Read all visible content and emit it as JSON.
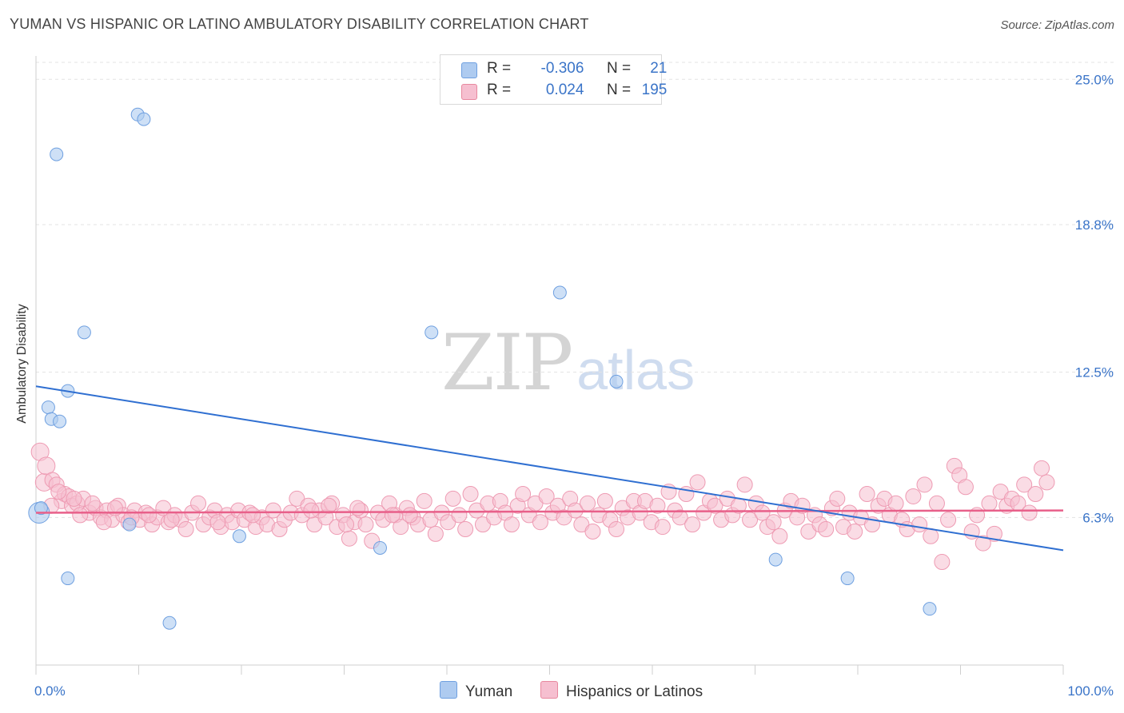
{
  "header": {
    "title": "YUMAN VS HISPANIC OR LATINO AMBULATORY DISABILITY CORRELATION CHART",
    "source": "Source: ZipAtlas.com"
  },
  "watermark": {
    "zip": "ZIP",
    "atlas": "atlas"
  },
  "legend_top": {
    "rows": [
      {
        "r_label": "R =",
        "r_value": "-0.306",
        "n_label": "N =",
        "n_value": "21",
        "color": "#aecbf0"
      },
      {
        "r_label": "R =",
        "r_value": "0.024",
        "n_label": "N =",
        "n_value": "195",
        "color": "#f6bfd0"
      }
    ]
  },
  "legend_bottom": {
    "items": [
      {
        "label": "Yuman",
        "color": "#aecbf0"
      },
      {
        "label": "Hispanics or Latinos",
        "color": "#f6bfd0"
      }
    ]
  },
  "chart_data": {
    "type": "scatter",
    "title": "YUMAN VS HISPANIC OR LATINO AMBULATORY DISABILITY CORRELATION CHART",
    "xlabel": "",
    "ylabel": "Ambulatory Disability",
    "xlim": [
      0,
      100
    ],
    "ylim": [
      0,
      26
    ],
    "x_tick_labels": [
      "0.0%",
      "100.0%"
    ],
    "y_ticks": [
      6.3,
      12.5,
      18.8,
      25.0
    ],
    "y_tick_labels": [
      "6.3%",
      "12.5%",
      "18.8%",
      "25.0%"
    ],
    "grid": true,
    "legend_position": "top-center",
    "series": [
      {
        "name": "Yuman",
        "color": "#6fa0e0",
        "fill": "#aecbf0",
        "points": [
          [
            0.3,
            6.5
          ],
          [
            0.5,
            6.7
          ],
          [
            1.2,
            11.0
          ],
          [
            1.5,
            10.5
          ],
          [
            2.0,
            21.8
          ],
          [
            2.3,
            10.4
          ],
          [
            3.1,
            11.7
          ],
          [
            3.1,
            3.7
          ],
          [
            4.7,
            14.2
          ],
          [
            9.1,
            6.0
          ],
          [
            9.9,
            23.5
          ],
          [
            10.5,
            23.3
          ],
          [
            13.0,
            1.8
          ],
          [
            19.8,
            5.5
          ],
          [
            33.5,
            5.0
          ],
          [
            38.5,
            14.2
          ],
          [
            51.0,
            15.9
          ],
          [
            56.5,
            12.1
          ],
          [
            72.0,
            4.5
          ],
          [
            79.0,
            3.7
          ],
          [
            87.0,
            2.4
          ]
        ],
        "trend": [
          [
            0,
            11.9
          ],
          [
            100,
            4.9
          ]
        ]
      },
      {
        "name": "Hispanics or Latinos",
        "color": "#e8608a",
        "fill": "#f6bfd0",
        "points": [
          [
            0.4,
            9.1
          ],
          [
            0.8,
            7.8
          ],
          [
            1.0,
            8.5
          ],
          [
            1.6,
            7.9
          ],
          [
            2.0,
            7.7
          ],
          [
            2.5,
            7.0
          ],
          [
            2.8,
            7.3
          ],
          [
            3.2,
            7.2
          ],
          [
            3.5,
            6.8
          ],
          [
            4.0,
            6.9
          ],
          [
            4.6,
            7.1
          ],
          [
            5.2,
            6.5
          ],
          [
            5.8,
            6.7
          ],
          [
            6.3,
            6.3
          ],
          [
            6.9,
            6.6
          ],
          [
            7.4,
            6.2
          ],
          [
            8.0,
            6.8
          ],
          [
            8.5,
            6.4
          ],
          [
            9.0,
            6.1
          ],
          [
            9.6,
            6.6
          ],
          [
            10.1,
            6.2
          ],
          [
            10.7,
            6.5
          ],
          [
            11.3,
            6.0
          ],
          [
            11.8,
            6.3
          ],
          [
            12.4,
            6.7
          ],
          [
            12.9,
            6.1
          ],
          [
            13.5,
            6.4
          ],
          [
            14.1,
            6.2
          ],
          [
            14.6,
            5.8
          ],
          [
            15.2,
            6.5
          ],
          [
            15.8,
            6.9
          ],
          [
            16.3,
            6.0
          ],
          [
            16.9,
            6.3
          ],
          [
            17.4,
            6.6
          ],
          [
            18.0,
            5.9
          ],
          [
            18.6,
            6.4
          ],
          [
            19.1,
            6.1
          ],
          [
            19.7,
            6.6
          ],
          [
            20.3,
            6.2
          ],
          [
            20.8,
            6.5
          ],
          [
            21.4,
            5.9
          ],
          [
            22.0,
            6.3
          ],
          [
            22.5,
            6.0
          ],
          [
            23.1,
            6.6
          ],
          [
            23.7,
            5.8
          ],
          [
            24.2,
            6.2
          ],
          [
            24.8,
            6.5
          ],
          [
            25.4,
            7.1
          ],
          [
            25.9,
            6.4
          ],
          [
            26.5,
            6.8
          ],
          [
            27.1,
            6.0
          ],
          [
            27.6,
            6.6
          ],
          [
            28.2,
            6.3
          ],
          [
            28.8,
            6.9
          ],
          [
            29.3,
            5.9
          ],
          [
            29.9,
            6.4
          ],
          [
            30.5,
            5.4
          ],
          [
            31.0,
            6.1
          ],
          [
            31.6,
            6.6
          ],
          [
            32.1,
            6.0
          ],
          [
            32.7,
            5.3
          ],
          [
            33.3,
            6.5
          ],
          [
            33.8,
            6.2
          ],
          [
            34.4,
            6.9
          ],
          [
            35.0,
            6.4
          ],
          [
            35.5,
            5.9
          ],
          [
            36.1,
            6.7
          ],
          [
            36.7,
            6.3
          ],
          [
            37.2,
            6.0
          ],
          [
            37.8,
            7.0
          ],
          [
            38.4,
            6.2
          ],
          [
            38.9,
            5.6
          ],
          [
            39.5,
            6.5
          ],
          [
            40.1,
            6.1
          ],
          [
            40.6,
            7.1
          ],
          [
            41.2,
            6.4
          ],
          [
            41.8,
            5.8
          ],
          [
            42.3,
            7.3
          ],
          [
            42.9,
            6.6
          ],
          [
            43.5,
            6.0
          ],
          [
            44.0,
            6.9
          ],
          [
            44.6,
            6.3
          ],
          [
            45.2,
            7.0
          ],
          [
            45.7,
            6.5
          ],
          [
            46.3,
            6.0
          ],
          [
            46.9,
            6.8
          ],
          [
            47.4,
            7.3
          ],
          [
            48.0,
            6.4
          ],
          [
            48.6,
            6.9
          ],
          [
            49.1,
            6.1
          ],
          [
            49.7,
            7.2
          ],
          [
            50.3,
            6.5
          ],
          [
            50.8,
            6.8
          ],
          [
            51.4,
            6.3
          ],
          [
            52.0,
            7.1
          ],
          [
            52.5,
            6.6
          ],
          [
            53.1,
            6.0
          ],
          [
            53.7,
            6.9
          ],
          [
            54.2,
            5.7
          ],
          [
            54.8,
            6.4
          ],
          [
            55.4,
            7.0
          ],
          [
            55.9,
            6.2
          ],
          [
            56.5,
            5.8
          ],
          [
            57.1,
            6.7
          ],
          [
            57.6,
            6.3
          ],
          [
            58.2,
            7.0
          ],
          [
            58.8,
            6.5
          ],
          [
            59.3,
            7.0
          ],
          [
            59.9,
            6.1
          ],
          [
            60.5,
            6.8
          ],
          [
            61.0,
            5.9
          ],
          [
            61.6,
            7.4
          ],
          [
            62.2,
            6.6
          ],
          [
            62.7,
            6.3
          ],
          [
            63.3,
            7.3
          ],
          [
            63.9,
            6.0
          ],
          [
            64.4,
            7.8
          ],
          [
            65.0,
            6.5
          ],
          [
            65.6,
            7.0
          ],
          [
            66.1,
            6.8
          ],
          [
            66.7,
            6.2
          ],
          [
            67.3,
            7.1
          ],
          [
            67.8,
            6.4
          ],
          [
            68.4,
            6.8
          ],
          [
            69.0,
            7.7
          ],
          [
            69.5,
            6.2
          ],
          [
            70.1,
            6.9
          ],
          [
            70.7,
            6.5
          ],
          [
            71.2,
            5.9
          ],
          [
            71.8,
            6.1
          ],
          [
            72.4,
            5.5
          ],
          [
            72.9,
            6.6
          ],
          [
            73.5,
            7.0
          ],
          [
            74.1,
            6.3
          ],
          [
            74.6,
            6.8
          ],
          [
            75.2,
            5.7
          ],
          [
            75.8,
            6.4
          ],
          [
            76.3,
            6.0
          ],
          [
            76.9,
            5.8
          ],
          [
            77.5,
            6.7
          ],
          [
            78.0,
            7.1
          ],
          [
            78.6,
            5.9
          ],
          [
            79.2,
            6.5
          ],
          [
            79.7,
            5.7
          ],
          [
            80.3,
            6.3
          ],
          [
            80.9,
            7.3
          ],
          [
            81.4,
            6.0
          ],
          [
            82.0,
            6.8
          ],
          [
            82.6,
            7.1
          ],
          [
            83.1,
            6.4
          ],
          [
            83.7,
            6.9
          ],
          [
            84.3,
            6.2
          ],
          [
            84.8,
            5.8
          ],
          [
            85.4,
            7.2
          ],
          [
            86.0,
            6.0
          ],
          [
            86.5,
            7.7
          ],
          [
            87.1,
            5.5
          ],
          [
            87.7,
            6.9
          ],
          [
            88.2,
            4.4
          ],
          [
            88.8,
            6.2
          ],
          [
            89.4,
            8.5
          ],
          [
            89.9,
            8.1
          ],
          [
            90.5,
            7.6
          ],
          [
            91.1,
            5.7
          ],
          [
            91.6,
            6.4
          ],
          [
            92.2,
            5.2
          ],
          [
            92.8,
            6.9
          ],
          [
            93.3,
            5.6
          ],
          [
            93.9,
            7.4
          ],
          [
            94.5,
            6.8
          ],
          [
            95.0,
            7.1
          ],
          [
            95.6,
            6.9
          ],
          [
            96.2,
            7.7
          ],
          [
            96.7,
            6.5
          ],
          [
            97.3,
            7.3
          ],
          [
            97.9,
            8.4
          ],
          [
            98.4,
            7.8
          ],
          [
            1.5,
            6.8
          ],
          [
            2.2,
            7.4
          ],
          [
            3.7,
            7.1
          ],
          [
            4.3,
            6.4
          ],
          [
            5.5,
            6.9
          ],
          [
            6.6,
            6.1
          ],
          [
            7.7,
            6.7
          ],
          [
            9.3,
            6.3
          ],
          [
            11.0,
            6.4
          ],
          [
            13.2,
            6.2
          ],
          [
            17.7,
            6.1
          ],
          [
            21.1,
            6.4
          ],
          [
            26.8,
            6.6
          ],
          [
            28.5,
            6.8
          ],
          [
            30.2,
            6.0
          ],
          [
            31.3,
            6.7
          ],
          [
            34.7,
            6.4
          ],
          [
            36.4,
            6.4
          ]
        ],
        "trend": [
          [
            0,
            6.5
          ],
          [
            100,
            6.6
          ]
        ]
      }
    ]
  }
}
